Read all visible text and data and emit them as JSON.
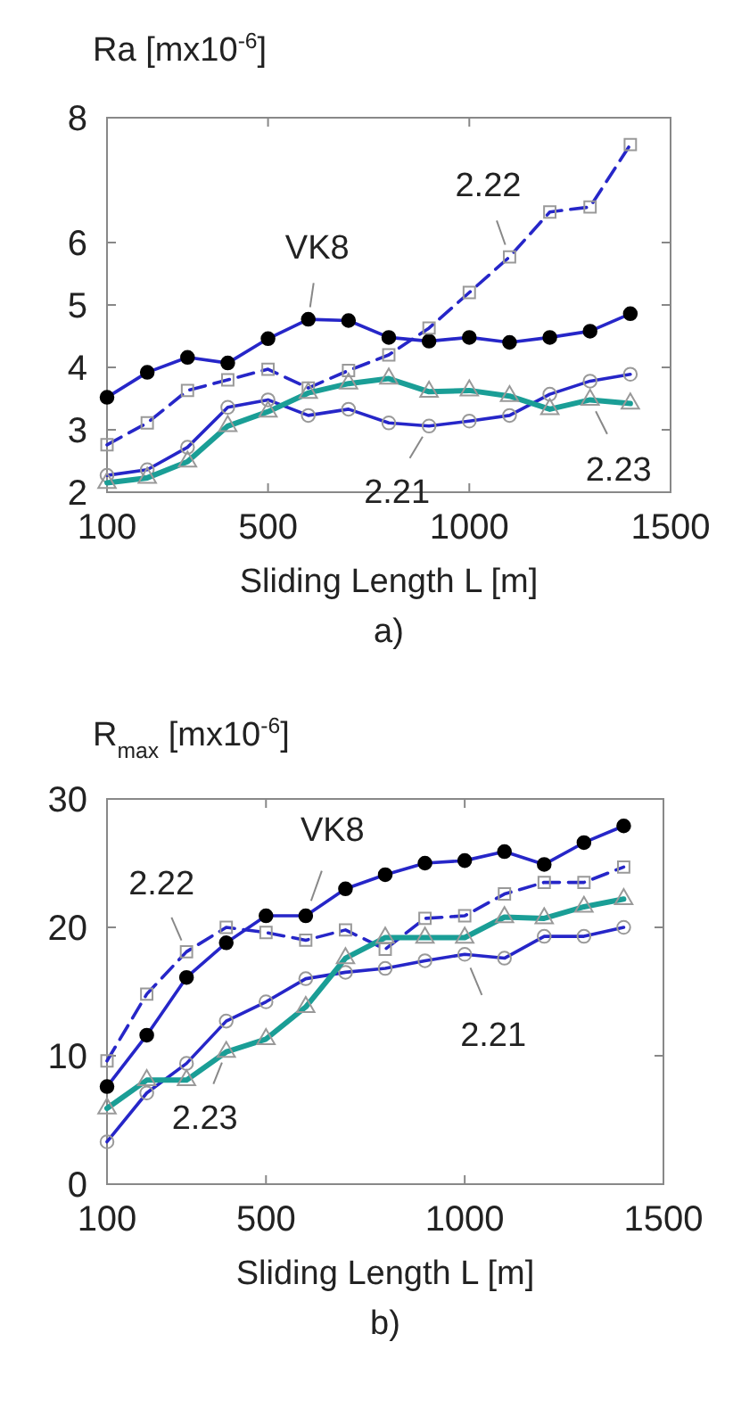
{
  "chart_data": [
    {
      "type": "line",
      "title": "a)",
      "ylabel": "Ra [mx10$^{-6}$]",
      "xlabel": "Sliding Length L [m]",
      "x": [
        100,
        200,
        300,
        400,
        500,
        600,
        700,
        800,
        900,
        1000,
        1100,
        1200,
        1300,
        1400
      ],
      "xlim": [
        100,
        1500
      ],
      "xticks": [
        100,
        500,
        1000,
        1500
      ],
      "ylim": [
        2,
        8
      ],
      "yticks": [
        2,
        3,
        4,
        5,
        6,
        8
      ],
      "grid": false,
      "series": [
        {
          "name": "VK8",
          "color": "#2626c8",
          "marker": "circle",
          "line_style": "solid",
          "colors": [
            "#000000",
            "#000000",
            "#000000",
            "#000000",
            "#000000",
            "#000000",
            "#000000",
            "#000000",
            "#000000",
            "#000000",
            "#000000",
            "#000000",
            "#000000",
            "#000000"
          ],
          "values": [
            3.52,
            3.92,
            4.16,
            4.07,
            4.46,
            4.77,
            4.75,
            4.48,
            4.42,
            4.48,
            4.4,
            4.48,
            4.58,
            4.86
          ]
        },
        {
          "name": "2.22",
          "color": "#2626c8",
          "marker": "square",
          "line_style": "dashed",
          "values": [
            2.76,
            3.11,
            3.63,
            3.8,
            3.97,
            3.67,
            3.95,
            4.2,
            4.63,
            5.2,
            5.77,
            6.49,
            6.57,
            7.57
          ]
        },
        {
          "name": "2.21",
          "color": "#2626c8",
          "marker": "circle",
          "line_style": "solid",
          "values": [
            2.27,
            2.36,
            2.72,
            3.36,
            3.48,
            3.23,
            3.33,
            3.11,
            3.06,
            3.14,
            3.23,
            3.57,
            3.78,
            3.89
          ]
        },
        {
          "name": "2.23",
          "color": "#1a9e96",
          "marker": "triangle",
          "line_style": "solid",
          "values": [
            2.15,
            2.23,
            2.49,
            3.06,
            3.29,
            3.59,
            3.74,
            3.82,
            3.61,
            3.63,
            3.54,
            3.33,
            3.48,
            3.42
          ]
        }
      ]
    },
    {
      "type": "line",
      "title": "b)",
      "ylabel": "R$_{max}$ [mx10$^{-6}$]",
      "xlabel": "Sliding Length L [m]",
      "x": [
        100,
        200,
        300,
        400,
        500,
        600,
        700,
        800,
        900,
        1000,
        1100,
        1200,
        1300,
        1400
      ],
      "xlim": [
        100,
        1500
      ],
      "xticks": [
        100,
        500,
        1000,
        1500
      ],
      "ylim": [
        0,
        30
      ],
      "yticks": [
        0,
        10,
        20,
        30
      ],
      "grid": false,
      "series": [
        {
          "name": "VK8",
          "color": "#2626c8",
          "marker": "circle",
          "line_style": "solid",
          "colors": [
            "#000000",
            "#000000",
            "#000000",
            "#000000",
            "#000000",
            "#000000",
            "#000000",
            "#000000",
            "#000000",
            "#000000",
            "#000000",
            "#000000",
            "#000000",
            "#000000"
          ],
          "values": [
            7.6,
            11.6,
            16.1,
            18.8,
            20.9,
            20.9,
            23.0,
            24.1,
            25.0,
            25.2,
            25.9,
            24.9,
            26.6,
            27.9
          ]
        },
        {
          "name": "2.22",
          "color": "#2626c8",
          "marker": "square",
          "line_style": "dashed",
          "values": [
            9.6,
            14.8,
            18.1,
            20.0,
            19.6,
            19.0,
            19.8,
            18.3,
            20.7,
            20.9,
            22.6,
            23.5,
            23.5,
            24.7
          ]
        },
        {
          "name": "2.21",
          "color": "#2626c8",
          "marker": "circle",
          "line_style": "solid",
          "values": [
            3.3,
            7.1,
            9.4,
            12.7,
            14.2,
            16.0,
            16.5,
            16.8,
            17.4,
            17.9,
            17.6,
            19.3,
            19.3,
            20.0
          ]
        },
        {
          "name": "2.23",
          "color": "#1a9e96",
          "marker": "triangle",
          "line_style": "solid",
          "values": [
            5.9,
            8.1,
            8.1,
            10.3,
            11.3,
            13.8,
            17.6,
            19.2,
            19.2,
            19.2,
            20.8,
            20.7,
            21.6,
            22.2
          ]
        }
      ]
    }
  ]
}
